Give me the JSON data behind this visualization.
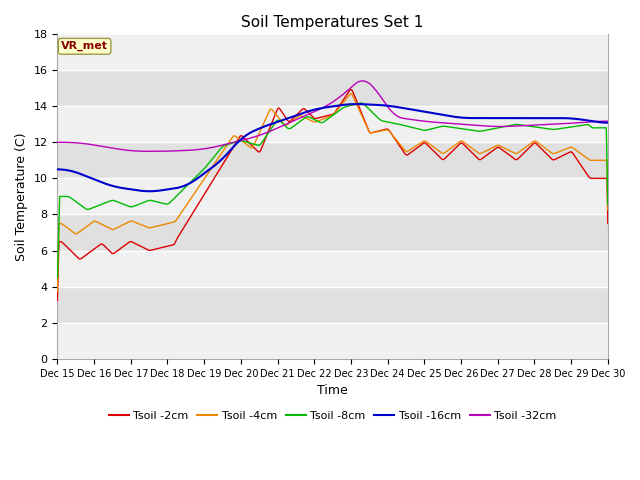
{
  "title": "Soil Temperatures Set 1",
  "xlabel": "Time",
  "ylabel": "Soil Temperature (C)",
  "ylim": [
    0,
    18
  ],
  "yticks": [
    0,
    2,
    4,
    6,
    8,
    10,
    12,
    14,
    16,
    18
  ],
  "fig_bg_color": "#ffffff",
  "plot_bg_color": "#e8e8e8",
  "series_colors": {
    "Tsoil -2cm": "#dd0000",
    "Tsoil -4cm": "#ee8800",
    "Tsoil -8cm": "#00bb00",
    "Tsoil -16cm": "#0000cc",
    "Tsoil -32cm": "#bb00bb"
  },
  "vr_met_label": "VR_met",
  "vr_met_bg": "#ffffcc",
  "vr_met_border": "#999944",
  "vr_met_text_color": "#880000",
  "legend_entries": [
    "Tsoil -2cm",
    "Tsoil -4cm",
    "Tsoil -8cm",
    "Tsoil -16cm",
    "Tsoil -32cm"
  ],
  "x_tick_labels": [
    "Dec 15",
    "Dec 16",
    "Dec 17",
    "Dec 18",
    "Dec 19",
    "Dec 20",
    "Dec 21",
    "Dec 22",
    "Dec 23",
    "Dec 24",
    "Dec 25",
    "Dec 26",
    "Dec 27",
    "Dec 28",
    "Dec 29",
    "Dec 30"
  ],
  "title_fontsize": 11,
  "axis_label_fontsize": 9,
  "tick_fontsize": 7,
  "legend_fontsize": 8
}
